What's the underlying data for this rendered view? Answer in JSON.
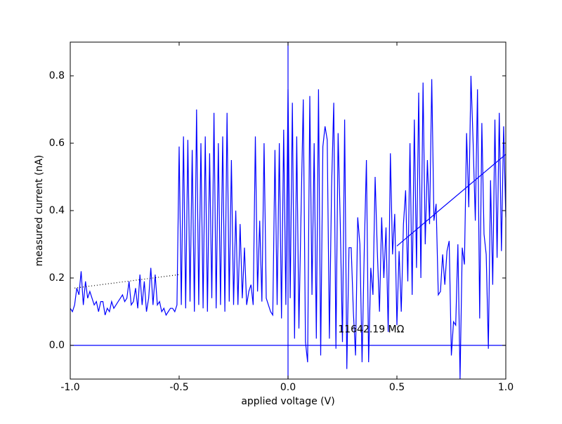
{
  "chart_data": {
    "type": "line",
    "xlabel": "applied voltage (V)",
    "ylabel": "measured current (nA)",
    "xlim": [
      -1,
      1
    ],
    "ylim": [
      -0.1,
      0.9
    ],
    "xticks": [
      {
        "value": -1,
        "label": "-1.0"
      },
      -0.5,
      {
        "value": 0,
        "label": "0.0"
      },
      0.5,
      {
        "value": 1,
        "label": "1.0"
      }
    ],
    "yticks": [
      {
        "value": 0,
        "label": "0.0"
      },
      0.2,
      0.4,
      0.6,
      0.8
    ],
    "hlines": [
      0
    ],
    "vlines": [
      0
    ],
    "line_color": "#0000ff",
    "annotation": {
      "text": "11642.19 MΩ",
      "x": 0.23,
      "y": 0.03
    },
    "series": [
      {
        "color": "#0000ff",
        "style": "solid",
        "x": [
          -1,
          -0.99,
          -0.98,
          -0.97,
          -0.96,
          -0.95,
          -0.94,
          -0.93,
          -0.92,
          -0.91,
          -0.9,
          -0.89,
          -0.88,
          -0.87,
          -0.86,
          -0.85,
          -0.84,
          -0.83,
          -0.82,
          -0.81,
          -0.8,
          -0.79,
          -0.78,
          -0.77,
          -0.76,
          -0.75,
          -0.74,
          -0.73,
          -0.72,
          -0.71,
          -0.7,
          -0.69,
          -0.68,
          -0.67,
          -0.66,
          -0.65,
          -0.64,
          -0.63,
          -0.62,
          -0.61,
          -0.6,
          -0.59,
          -0.58,
          -0.57,
          -0.56,
          -0.55,
          -0.54,
          -0.53,
          -0.52,
          -0.51,
          -0.5,
          -0.49,
          -0.48,
          -0.47,
          -0.46,
          -0.45,
          -0.44,
          -0.43,
          -0.42,
          -0.41,
          -0.4,
          -0.39,
          -0.38,
          -0.37,
          -0.36,
          -0.35,
          -0.34,
          -0.33,
          -0.32,
          -0.31,
          -0.3,
          -0.29,
          -0.28,
          -0.27,
          -0.26,
          -0.25,
          -0.24,
          -0.23,
          -0.22,
          -0.21,
          -0.2,
          -0.19,
          -0.18,
          -0.17,
          -0.16,
          -0.15,
          -0.14,
          -0.13,
          -0.12,
          -0.11,
          -0.1,
          -0.09,
          -0.08,
          -0.07,
          -0.06,
          -0.05,
          -0.04,
          -0.03,
          -0.02,
          -0.01,
          0,
          0.01,
          0.02,
          0.03,
          0.04,
          0.05,
          0.06,
          0.07,
          0.08,
          0.09,
          0.1,
          0.11,
          0.12,
          0.13,
          0.14,
          0.15,
          0.16,
          0.17,
          0.18,
          0.19,
          0.2,
          0.21,
          0.22,
          0.23,
          0.24,
          0.25,
          0.26,
          0.27,
          0.28,
          0.29,
          0.3,
          0.31,
          0.32,
          0.33,
          0.34,
          0.35,
          0.36,
          0.37,
          0.38,
          0.39,
          0.4,
          0.41,
          0.42,
          0.43,
          0.44,
          0.45,
          0.46,
          0.47,
          0.48,
          0.49,
          0.5,
          0.51,
          0.52,
          0.53,
          0.54,
          0.55,
          0.56,
          0.57,
          0.58,
          0.59,
          0.6,
          0.61,
          0.62,
          0.63,
          0.64,
          0.65,
          0.66,
          0.67,
          0.68,
          0.69,
          0.7,
          0.71,
          0.72,
          0.73,
          0.74,
          0.75,
          0.76,
          0.77,
          0.78,
          0.79,
          0.8,
          0.81,
          0.82,
          0.83,
          0.84,
          0.85,
          0.86,
          0.87,
          0.88,
          0.89,
          0.9,
          0.91,
          0.92,
          0.93,
          0.94,
          0.95,
          0.96,
          0.97,
          0.98,
          0.99,
          1
        ],
        "values": [
          0.11,
          0.1,
          0.12,
          0.17,
          0.15,
          0.22,
          0.12,
          0.19,
          0.14,
          0.16,
          0.14,
          0.12,
          0.13,
          0.1,
          0.13,
          0.13,
          0.09,
          0.11,
          0.1,
          0.13,
          0.11,
          0.12,
          0.13,
          0.14,
          0.15,
          0.13,
          0.14,
          0.19,
          0.12,
          0.13,
          0.17,
          0.11,
          0.21,
          0.12,
          0.19,
          0.1,
          0.14,
          0.23,
          0.12,
          0.21,
          0.12,
          0.13,
          0.1,
          0.11,
          0.09,
          0.1,
          0.11,
          0.11,
          0.1,
          0.12,
          0.59,
          0.12,
          0.62,
          0.11,
          0.61,
          0.13,
          0.58,
          0.1,
          0.7,
          0.12,
          0.6,
          0.11,
          0.62,
          0.1,
          0.57,
          0.14,
          0.69,
          0.11,
          0.6,
          0.12,
          0.62,
          0.1,
          0.69,
          0.13,
          0.55,
          0.12,
          0.4,
          0.12,
          0.36,
          0.14,
          0.29,
          0.12,
          0.16,
          0.18,
          0.12,
          0.62,
          0.16,
          0.37,
          0.13,
          0.6,
          0.14,
          0.12,
          0.1,
          0.09,
          0.58,
          0.12,
          0.6,
          0.08,
          0.64,
          0.12,
          0.76,
          0.14,
          0.72,
          0.02,
          0.62,
          0.05,
          0.4,
          0.73,
          0.01,
          -0.05,
          0.74,
          0.15,
          0.6,
          0.02,
          0.76,
          -0.03,
          0.59,
          0.65,
          0.61,
          0.02,
          0.47,
          0.72,
          -0.01,
          0.63,
          0.36,
          0.01,
          0.67,
          -0.07,
          0.29,
          0.29,
          0.1,
          -0.03,
          0.38,
          0.3,
          -0.05,
          0.28,
          0.55,
          -0.05,
          0.23,
          0.15,
          0.5,
          0.28,
          0.1,
          0.38,
          0.2,
          0.35,
          0.04,
          0.57,
          0.27,
          0.39,
          0.06,
          0.28,
          0.1,
          0.36,
          0.46,
          0.19,
          0.6,
          0.15,
          0.67,
          0.23,
          0.75,
          0.2,
          0.78,
          0.3,
          0.55,
          0.36,
          0.79,
          0.37,
          0.42,
          0.15,
          0.16,
          0.27,
          0.18,
          0.28,
          0.31,
          -0.03,
          0.07,
          0.06,
          0.3,
          -0.1,
          0.29,
          0.24,
          0.63,
          0.41,
          0.8,
          0.6,
          0.37,
          0.76,
          0.08,
          0.66,
          0.33,
          0.27,
          -0.01,
          0.49,
          0.18,
          0.67,
          0.26,
          0.69,
          0.28,
          0.65,
          0.38
        ]
      },
      {
        "color": "#000000",
        "style": "dotted",
        "x": [
          -0.98,
          -0.5
        ],
        "values": [
          0.17,
          0.21
        ]
      },
      {
        "color": "#0000ff",
        "style": "solid",
        "x": [
          0.5,
          1
        ],
        "values": [
          0.295,
          0.567
        ]
      }
    ]
  }
}
